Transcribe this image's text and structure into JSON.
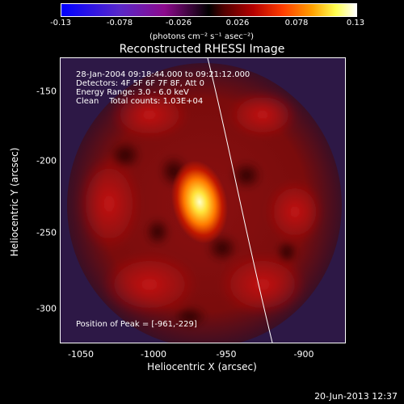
{
  "colorbar": {
    "ticks": [
      "-0.13",
      "-0.078",
      "-0.026",
      "0.026",
      "0.078",
      "0.13"
    ],
    "units": "(photons cm⁻² s⁻¹ asec⁻²)"
  },
  "title": "Reconstructed RHESSI Image",
  "info": {
    "time": "28-Jan-2004 09:18:44.000 to 09:21:12.000",
    "detectors": "Detectors: 4F 5F 6F 7F 8F, Att 0",
    "energy": "Energy Range: 3.0 - 6.0 keV",
    "clean": "Clean    Total counts: 1.03E+04"
  },
  "peak": "Position of Peak = [-961,-229]",
  "axes": {
    "xlabel": "Heliocentric X (arcsec)",
    "ylabel": "Heliocentric Y (arcsec)",
    "xticks": [
      "-1050",
      "-1000",
      "-950",
      "-900"
    ],
    "yticks": [
      "-150",
      "-200",
      "-250",
      "-300"
    ]
  },
  "footer_date": "20-Jun-2013 12:37",
  "colors": {
    "background": "#000000",
    "foreground": "#ffffff"
  }
}
